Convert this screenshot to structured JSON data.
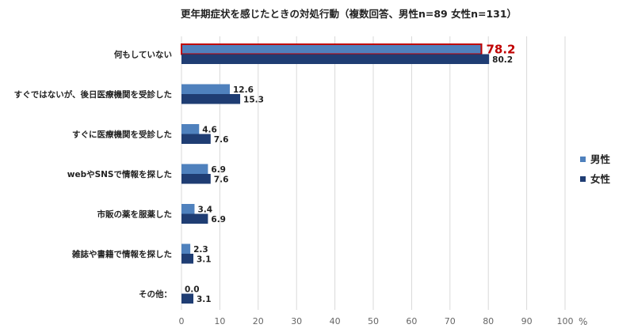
{
  "chart_data": {
    "type": "bar",
    "orientation": "horizontal",
    "title": "更年期症状を感じたときの対処行動（複数回答、男性n=89 女性n=131）",
    "categories": [
      "何もしていない",
      "すぐではないが、後日医療機関を受診した",
      "すぐに医療機関を受診した",
      "webやSNSで情報を探した",
      "市販の薬を服薬した",
      "雑誌や書籍で情報を探した",
      "その他："
    ],
    "series": [
      {
        "name": "男性",
        "color": "#4f81bd",
        "values": [
          78.2,
          12.6,
          4.6,
          6.9,
          3.4,
          2.3,
          0.0
        ]
      },
      {
        "name": "女性",
        "color": "#1f3d73",
        "values": [
          80.2,
          15.3,
          7.6,
          7.6,
          6.9,
          3.1,
          3.1
        ]
      }
    ],
    "value_labels": {
      "男性": [
        "78.2",
        "12.6",
        "4.6",
        "6.9",
        "3.4",
        "2.3",
        "0.0"
      ],
      "女性": [
        "80.2",
        "15.3",
        "7.6",
        "7.6",
        "6.9",
        "3.1",
        "3.1"
      ]
    },
    "highlight": {
      "category_index": 0,
      "series": "男性",
      "color": "#c00000"
    },
    "xlim": [
      0,
      100
    ],
    "xticks": [
      0,
      10,
      20,
      30,
      40,
      50,
      60,
      70,
      80,
      90,
      100
    ],
    "xunit": "%",
    "grid": "vertical",
    "legend_position": "right"
  }
}
